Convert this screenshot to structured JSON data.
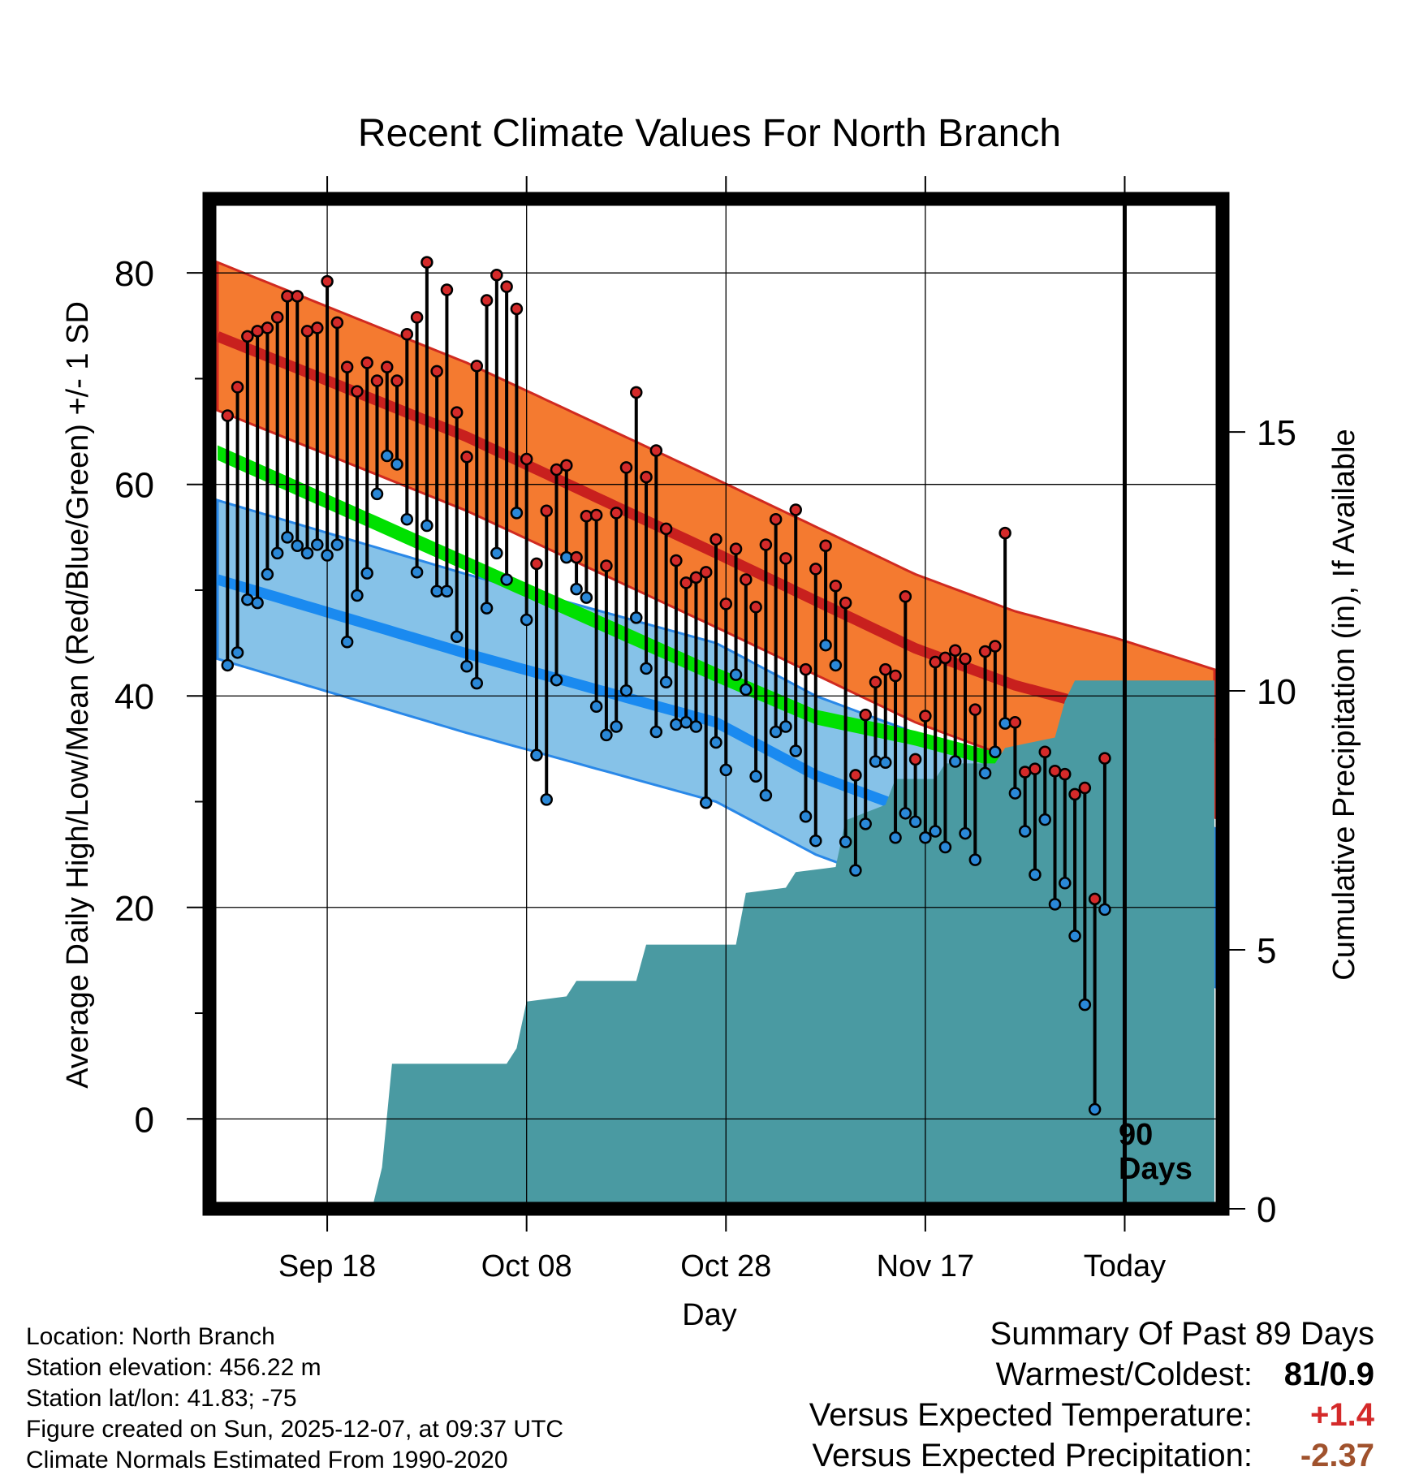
{
  "chart_data": {
    "type": "line",
    "title": "Recent Climate Values For North Branch",
    "xlabel": "Day",
    "ylabel": "Average Daily High/Low/Mean (Red/Blue/Green) +/- 1 SD",
    "y2label": "Cumulative Precipitation (in), If Available",
    "ylim": [
      -8.5,
      87
    ],
    "y2lim": [
      0,
      19.5
    ],
    "xlim": [
      0,
      100
    ],
    "yticks": [
      "0",
      "20",
      "40",
      "60",
      "80"
    ],
    "y2ticks": [
      "0",
      "5",
      "10",
      "15"
    ],
    "xticks": [
      {
        "day": 11,
        "label": "Sep 18"
      },
      {
        "day": 31,
        "label": "Oct 08"
      },
      {
        "day": 51,
        "label": "Oct 28"
      },
      {
        "day": 71,
        "label": "Nov 17"
      },
      {
        "day": 91,
        "label": "Today"
      }
    ],
    "today_marker": {
      "day": 91,
      "label_line1": "90",
      "label_line2": "Days"
    },
    "normals": {
      "knots_x": [
        0,
        25,
        50,
        60,
        70,
        80,
        90,
        100
      ],
      "high_mean": [
        74,
        64.5,
        53.5,
        49,
        44.5,
        41,
        38.5,
        35.5
      ],
      "high_sd": 7,
      "mean": [
        63,
        52.5,
        42,
        38,
        36,
        33.5,
        31,
        28
      ],
      "mean_band": 0.7,
      "low_mean": [
        51,
        44,
        37.5,
        32.5,
        29,
        26,
        23,
        20
      ],
      "low_sd": 7.5
    },
    "series": [
      {
        "name": "High",
        "color": "#d42a2a",
        "values": [
          66.5,
          69.2,
          74,
          74.5,
          74.8,
          75.8,
          77.8,
          77.8,
          74.5,
          74.8,
          79.2,
          75.3,
          71.1,
          68.8,
          71.5,
          69.8,
          71.1,
          69.8,
          74.2,
          75.8,
          81,
          70.7,
          78.4,
          66.8,
          62.6,
          71.2,
          77.4,
          79.8,
          78.7,
          76.6,
          62.4,
          52.5,
          57.5,
          61.4,
          61.8,
          53.1,
          57,
          57.1,
          52.3,
          57.3,
          61.6,
          68.7,
          60.7,
          63.2,
          55.8,
          52.8,
          50.7,
          51.2,
          51.7,
          54.8,
          48.7,
          53.9,
          51,
          48.4,
          54.3,
          56.7,
          53,
          57.6,
          42.5,
          52,
          54.2,
          50.4,
          48.8,
          32.5,
          38.2,
          41.3,
          42.5,
          41.9,
          49.4,
          34,
          38.1,
          43.2,
          43.6,
          44.3,
          43.5,
          38.7,
          44.2,
          44.7,
          55.4,
          37.5,
          32.8,
          33.1,
          34.7,
          32.9,
          32.6,
          30.7,
          31.3,
          20.8,
          34.1
        ]
      },
      {
        "name": "Low",
        "color": "#2a88d8",
        "values": [
          42.9,
          44.1,
          49.1,
          48.8,
          51.5,
          53.5,
          55,
          54.2,
          53.5,
          54.3,
          53.3,
          54.3,
          45.1,
          49.5,
          51.6,
          59.1,
          62.7,
          61.9,
          56.7,
          51.7,
          56.1,
          49.9,
          49.9,
          45.6,
          42.8,
          41.2,
          48.3,
          53.5,
          51,
          57.3,
          47.2,
          34.4,
          30.2,
          41.5,
          53.1,
          50.1,
          49.3,
          39,
          36.3,
          37.1,
          40.5,
          47.4,
          42.6,
          36.6,
          41.3,
          37.3,
          37.5,
          37.1,
          29.9,
          35.6,
          33,
          42,
          40.6,
          32.4,
          30.6,
          36.6,
          37.1,
          34.8,
          28.6,
          26.3,
          44.8,
          42.9,
          26.2,
          23.5,
          27.9,
          33.8,
          33.7,
          26.6,
          28.9,
          28.1,
          26.6,
          27.2,
          25.7,
          33.8,
          27,
          24.5,
          32.7,
          34.7,
          37.4,
          30.8,
          27.2,
          23.1,
          28.3,
          20.3,
          22.3,
          17.3,
          10.8,
          0.9,
          19.8
        ]
      },
      {
        "name": "Cumulative Precipitation",
        "color": "#4a9aa2",
        "x": [
          0,
          15.5,
          16.5,
          17.5,
          29,
          30,
          31,
          35,
          36,
          42,
          43,
          52,
          53,
          57,
          58,
          62,
          63,
          67,
          68,
          72,
          73,
          78,
          79,
          84,
          85,
          86,
          100
        ],
        "values": [
          0,
          0,
          0.8,
          2.8,
          2.8,
          3.1,
          4,
          4.1,
          4.4,
          4.4,
          5.1,
          5.1,
          6.1,
          6.2,
          6.5,
          6.6,
          7.5,
          7.8,
          8.3,
          8.3,
          8.6,
          8.6,
          8.9,
          9.1,
          9.8,
          10.2,
          10.2
        ]
      }
    ]
  },
  "info": {
    "location": "Location: North Branch",
    "elevation": "Station elevation: 456.22 m",
    "latlon": "Station lat/lon: 41.83; -75",
    "created": "Figure created on Sun, 2025-12-07, at 09:37 UTC",
    "normals": "Climate Normals Estimated From 1990-2020"
  },
  "summary": {
    "title": "Summary Of Past 89 Days",
    "warm_cold_label": "Warmest/Coldest:",
    "warm_cold_value": "81/0.9",
    "temp_label": "Versus Expected Temperature:",
    "temp_value": "+1.4",
    "temp_color": "#d42a2a",
    "precip_label": "Versus Expected Precipitation:",
    "precip_value": "-2.37",
    "precip_color": "#a0522d"
  }
}
